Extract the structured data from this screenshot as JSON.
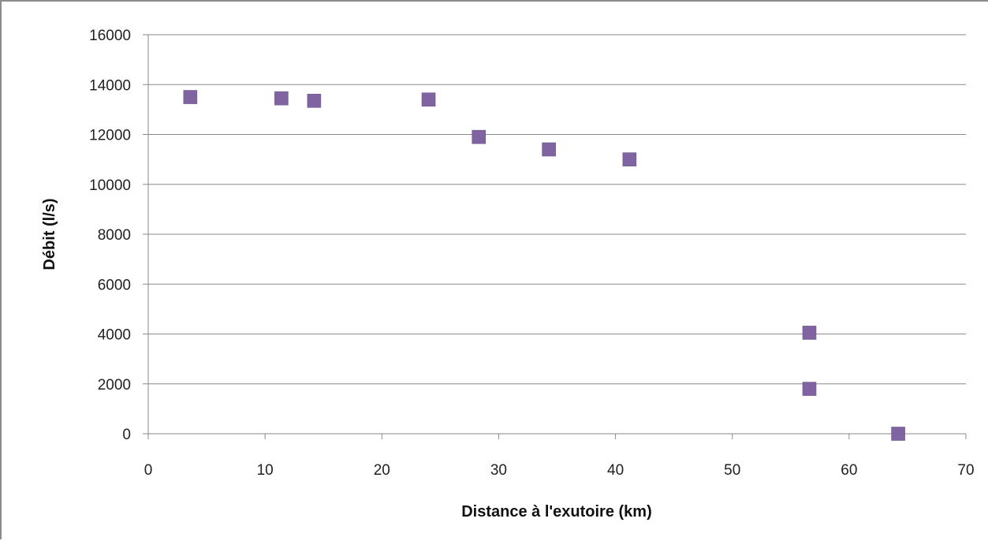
{
  "chart_data": {
    "type": "scatter",
    "title": "",
    "xlabel": "Distance à l'exutoire (km)",
    "ylabel": "Débit (l/s)",
    "xlim": [
      0,
      70
    ],
    "ylim": [
      0,
      16000
    ],
    "x_ticks": [
      0,
      10,
      20,
      30,
      40,
      50,
      60,
      70
    ],
    "y_ticks": [
      0,
      2000,
      4000,
      6000,
      8000,
      10000,
      12000,
      14000,
      16000
    ],
    "grid": "horizontal",
    "legend": "none",
    "marker": "square",
    "series": [
      {
        "color": "#8064a2",
        "x": [
          3.6,
          11.4,
          14.2,
          24.0,
          28.3,
          34.3,
          41.2,
          56.6,
          56.6,
          64.2
        ],
        "y": [
          13500,
          13450,
          13350,
          13400,
          11900,
          11400,
          11000,
          4050,
          1800,
          0
        ]
      }
    ]
  }
}
